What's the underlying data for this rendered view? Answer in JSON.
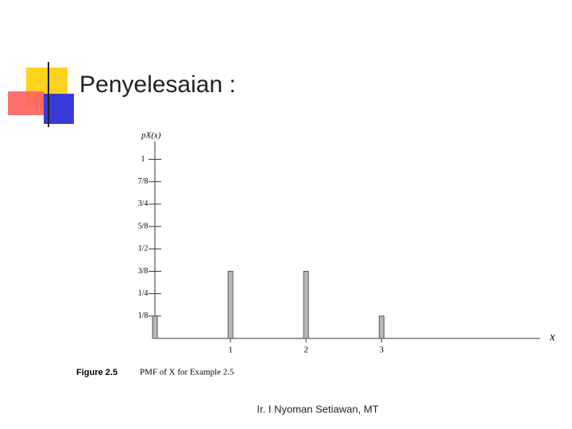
{
  "slide": {
    "title": "Penyelesaian :",
    "footer": "Ir. I Nyoman Setiawan, MT"
  },
  "chart_data": {
    "type": "bar",
    "y_label": "pX(x)",
    "x_label": "x",
    "caption": {
      "label": "Figure 2.5",
      "text": "PMF of X for Example 2.5"
    },
    "x": [
      0,
      1,
      2,
      3
    ],
    "values": [
      0.125,
      0.375,
      0.375,
      0.125
    ],
    "color": "#b8b8b8",
    "xlim": [
      0,
      5.1
    ],
    "xticks": [
      1,
      2,
      3
    ],
    "ylim": [
      0,
      1.1
    ],
    "yticks": [
      {
        "value": 0.125,
        "label": "1/8"
      },
      {
        "value": 0.25,
        "label": "1/4"
      },
      {
        "value": 0.375,
        "label": "3/8"
      },
      {
        "value": 0.5,
        "label": "1/2"
      },
      {
        "value": 0.625,
        "label": "5/8"
      },
      {
        "value": 0.75,
        "label": "3/4"
      },
      {
        "value": 0.875,
        "label": "7/8"
      },
      {
        "value": 1,
        "label": "1"
      }
    ]
  }
}
